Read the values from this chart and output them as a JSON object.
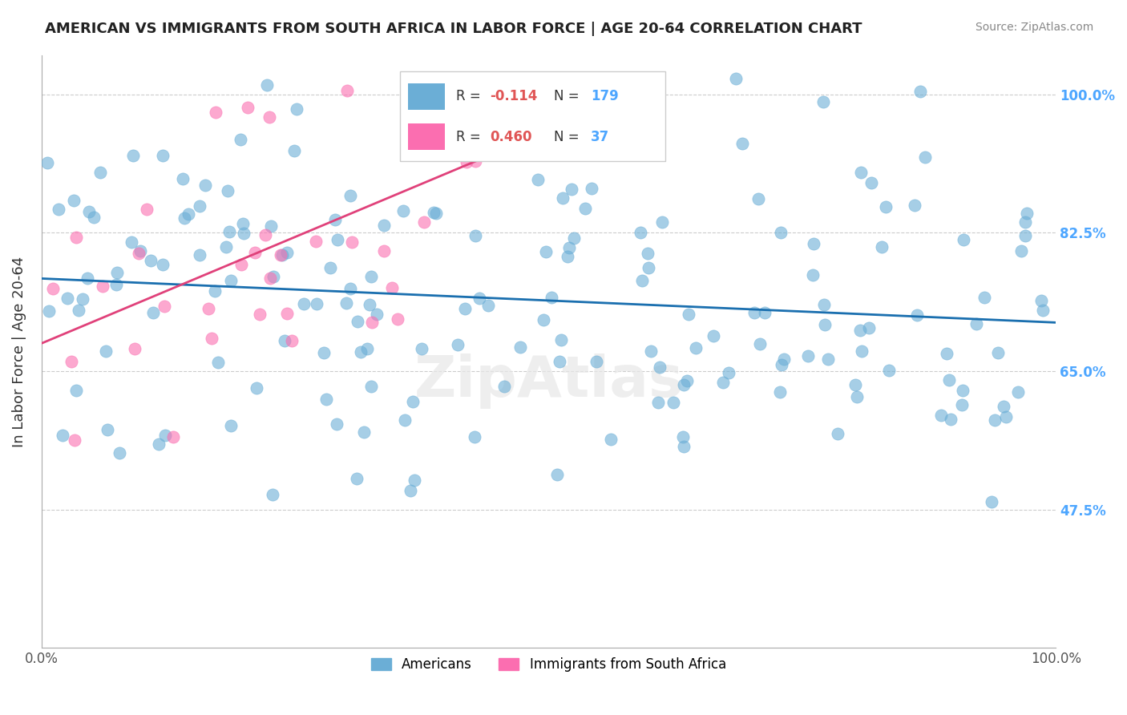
{
  "title": "AMERICAN VS IMMIGRANTS FROM SOUTH AFRICA IN LABOR FORCE | AGE 20-64 CORRELATION CHART",
  "source": "Source: ZipAtlas.com",
  "ylabel": "In Labor Force | Age 20-64",
  "ytick_labels": [
    "47.5%",
    "65.0%",
    "82.5%",
    "100.0%"
  ],
  "ytick_values": [
    0.475,
    0.65,
    0.825,
    1.0
  ],
  "xlim": [
    0.0,
    1.0
  ],
  "ylim": [
    0.3,
    1.05
  ],
  "americans_color": "#6baed6",
  "immigrants_color": "#fb6eb0",
  "trendline_american_color": "#1a6faf",
  "trendline_immigrant_color": "#e0417a",
  "background_color": "#ffffff",
  "grid_color": "#cccccc",
  "R_american": -0.114,
  "N_american": 179,
  "R_immigrant": 0.46,
  "N_immigrant": 37,
  "american_seed": 42,
  "immigrant_seed": 7,
  "legend_labels": [
    "Americans",
    "Immigrants from South Africa"
  ],
  "R_am_label": "-0.114",
  "N_am_label": "179",
  "R_im_label": "0.460",
  "N_im_label": "37"
}
